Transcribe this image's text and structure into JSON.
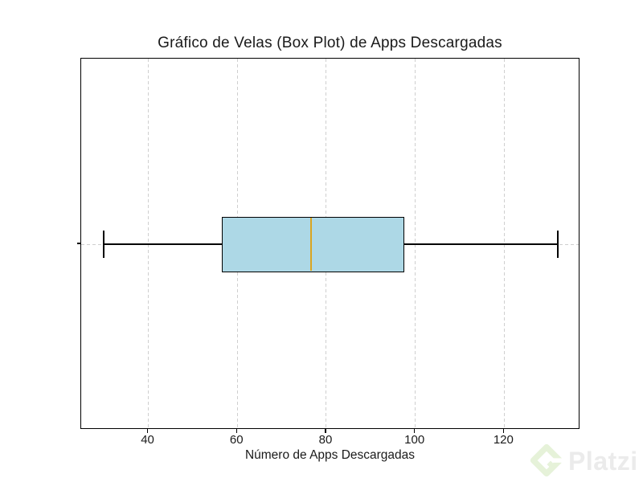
{
  "chart_data": {
    "type": "box",
    "orientation": "horizontal",
    "title": "Gráfico de Velas (Box Plot) de Apps Descargadas",
    "xlabel": "Número de Apps Descargadas",
    "x_ticks": [
      40,
      60,
      80,
      100,
      120
    ],
    "xlim": [
      24.9,
      137.1
    ],
    "grid": true,
    "n_boxes": 1,
    "series": [
      {
        "name": "Apps Descargadas",
        "stats": {
          "whislo": 30,
          "q1": 56.5,
          "med": 76.5,
          "q3": 97.5,
          "whishi": 132
        }
      }
    ],
    "colors": {
      "box_fill": "#ADD8E6",
      "box_edge": "#000000",
      "median": "#DAA520",
      "whisker": "#000000",
      "cap": "#000000",
      "grid": "#cfcfcf",
      "axis": "#000000",
      "text": "#1a1a1a"
    }
  },
  "watermark": {
    "text": "Platzi",
    "logo": "platzi-logo",
    "logo_color": "#e6f2d9",
    "text_color": "#ebebeb"
  }
}
